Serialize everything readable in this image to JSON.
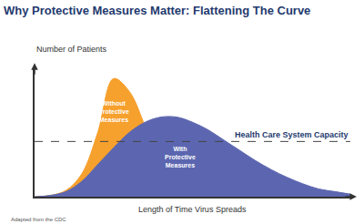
{
  "chart_data": {
    "type": "area",
    "title": "Why Protective Measures Matter: Flattening The Curve",
    "xlabel": "Length of Time Virus Spreads",
    "ylabel": "Number of Patients",
    "note": "Adapted from the CDC",
    "x": [
      0,
      5,
      10,
      15,
      20,
      25,
      30,
      35,
      40,
      45,
      50,
      55,
      60,
      65,
      70,
      75,
      80,
      85,
      90,
      95,
      100
    ],
    "series": [
      {
        "name": "Without Protective Measures",
        "color": "#f6a02d",
        "values": [
          0,
          1,
          5,
          18,
          50,
          92,
          82,
          55,
          25,
          9,
          3,
          1,
          0,
          0,
          0,
          0,
          0,
          0,
          0,
          0,
          0
        ]
      },
      {
        "name": "With Protective Measures",
        "color": "#5c66b0",
        "values": [
          0,
          1,
          4,
          12,
          25,
          38,
          50,
          58,
          62,
          62,
          58,
          52,
          44,
          36,
          28,
          21,
          15,
          10,
          6,
          4,
          2
        ]
      }
    ],
    "capacity": {
      "value": 43,
      "label": "Health Care System Capacity",
      "line_style": "dash"
    },
    "xlim": [
      0,
      100
    ],
    "ylim": [
      0,
      100
    ],
    "tick_labels": false,
    "grid": false
  }
}
